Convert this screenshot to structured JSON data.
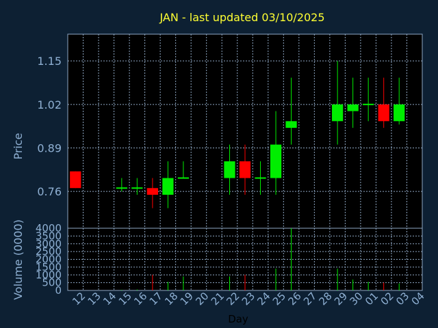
{
  "colors": {
    "background": "#0d2033",
    "plot_background": "#000000",
    "grid": "#8fa8c4",
    "axis_text": "#8fb0d3",
    "title": "#ffff33",
    "up": "#00ee00",
    "down": "#ff0000"
  },
  "chart_data": [
    {
      "type": "candlestick",
      "title": "JAN - last updated 03/10/2025",
      "ylabel": "Price",
      "yticks": [
        0.76,
        0.89,
        1.02,
        1.15
      ],
      "ytick_labels": [
        "0.76",
        "0.89",
        "1.02",
        "1.15"
      ],
      "ylim": [
        0.65,
        1.23
      ],
      "grid": true,
      "candles": [
        {
          "day": "12",
          "open": 0.82,
          "close": 0.77,
          "high": 0.82,
          "low": 0.77
        },
        {
          "day": "15",
          "open": 0.77,
          "close": 0.77,
          "high": 0.8,
          "low": 0.76
        },
        {
          "day": "16",
          "open": 0.77,
          "close": 0.77,
          "high": 0.8,
          "low": 0.75
        },
        {
          "day": "17",
          "open": 0.77,
          "close": 0.75,
          "high": 0.8,
          "low": 0.71
        },
        {
          "day": "18",
          "open": 0.75,
          "close": 0.8,
          "high": 0.85,
          "low": 0.71
        },
        {
          "day": "19",
          "open": 0.8,
          "close": 0.8,
          "high": 0.85,
          "low": 0.8
        },
        {
          "day": "22",
          "open": 0.8,
          "close": 0.85,
          "high": 0.9,
          "low": 0.75
        },
        {
          "day": "23",
          "open": 0.85,
          "close": 0.8,
          "high": 0.9,
          "low": 0.75
        },
        {
          "day": "24",
          "open": 0.8,
          "close": 0.8,
          "high": 0.85,
          "low": 0.75
        },
        {
          "day": "25",
          "open": 0.8,
          "close": 0.9,
          "high": 1.0,
          "low": 0.75
        },
        {
          "day": "26",
          "open": 0.95,
          "close": 0.97,
          "high": 1.1,
          "low": 0.9
        },
        {
          "day": "29",
          "open": 0.97,
          "close": 1.02,
          "high": 1.15,
          "low": 0.9
        },
        {
          "day": "30",
          "open": 1.0,
          "close": 1.02,
          "high": 1.1,
          "low": 0.95
        },
        {
          "day": "01",
          "open": 1.02,
          "close": 1.02,
          "high": 1.1,
          "low": 0.97
        },
        {
          "day": "02",
          "open": 1.02,
          "close": 0.97,
          "high": 1.1,
          "low": 0.95
        },
        {
          "day": "03",
          "open": 0.97,
          "close": 1.02,
          "high": 1.1,
          "low": 0.96
        }
      ]
    },
    {
      "type": "bar",
      "ylabel": "Volume (0000)",
      "xlabel": "Day",
      "yticks": [
        0,
        500,
        1000,
        1500,
        2000,
        2500,
        3000,
        3500,
        4000
      ],
      "ytick_labels": [
        "0",
        "500",
        "1000",
        "1500",
        "2000",
        "2500",
        "3000",
        "3500",
        "4000"
      ],
      "ylim": [
        0,
        4000
      ],
      "grid": true,
      "categories": [
        "12",
        "13",
        "14",
        "15",
        "16",
        "17",
        "18",
        "19",
        "20",
        "21",
        "22",
        "23",
        "24",
        "25",
        "26",
        "27",
        "28",
        "29",
        "30",
        "01",
        "02",
        "03",
        "04"
      ],
      "values": [
        0,
        0,
        0,
        40,
        60,
        1000,
        550,
        900,
        0,
        0,
        900,
        1000,
        0,
        1400,
        4000,
        0,
        0,
        1400,
        700,
        550,
        500,
        450,
        0
      ],
      "directions": [
        "none",
        "none",
        "none",
        "up",
        "up",
        "down",
        "up",
        "up",
        "none",
        "none",
        "up",
        "down",
        "none",
        "up",
        "up",
        "none",
        "none",
        "up",
        "up",
        "up",
        "down",
        "up",
        "none"
      ]
    }
  ]
}
